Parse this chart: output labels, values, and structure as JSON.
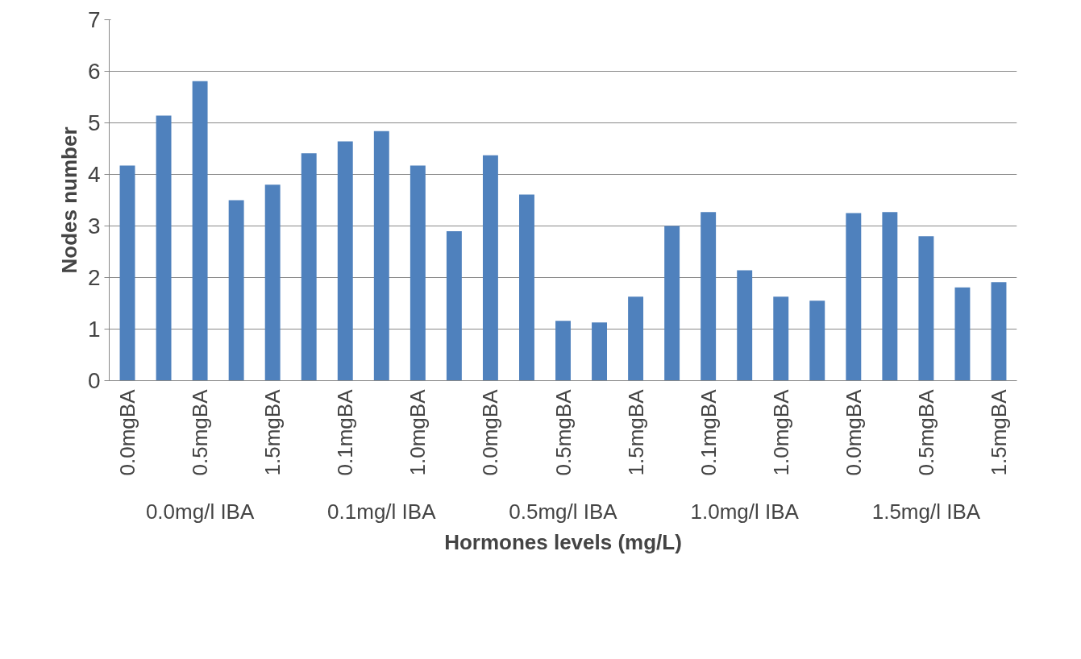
{
  "chart_data": {
    "type": "bar",
    "xlabel": "Hormones levels (mg/L)",
    "ylabel": "Nodes number",
    "categories": [
      "0.0mgBA",
      null,
      "0.5mgBA",
      null,
      "1.5mgBA",
      null,
      "0.1mgBA",
      null,
      "1.0mgBA",
      null,
      "0.0mgBA",
      null,
      "0.5mgBA",
      null,
      "1.5mgBA",
      null,
      "0.1mgBA",
      null,
      "1.0mgBA",
      null,
      "0.0mgBA",
      null,
      "0.5mgBA",
      null,
      "1.5mgBA"
    ],
    "values": [
      4.17,
      5.14,
      5.81,
      3.5,
      3.8,
      4.41,
      4.64,
      4.84,
      4.17,
      2.9,
      4.37,
      3.61,
      1.16,
      1.13,
      1.63,
      3.0,
      3.27,
      2.14,
      1.63,
      1.55,
      3.25,
      3.27,
      2.8,
      1.81,
      1.91
    ],
    "color": "#4f81bd",
    "annotations": [
      "0.0mg/l IBA",
      "0.1mg/l IBA",
      "0.5mg/l IBA",
      "1.0mg/l IBA",
      "1.5mg/l IBA"
    ],
    "ylim": [
      0,
      7
    ],
    "yticks": [
      0,
      1,
      2,
      3,
      4,
      5,
      6,
      7
    ],
    "grid": "y"
  }
}
